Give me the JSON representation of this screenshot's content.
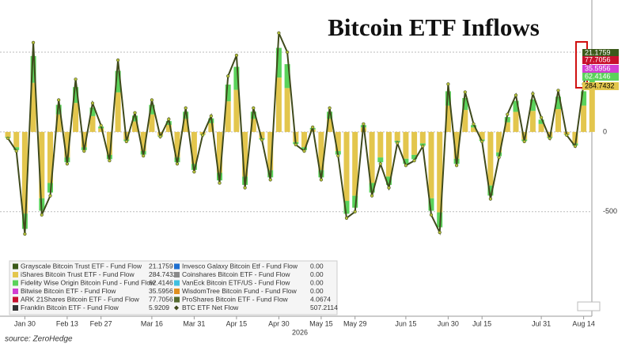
{
  "chart_data": {
    "type": "stacked_bar_line",
    "title": "Bitcoin ETF Inflows",
    "x_sub_label": "2026",
    "source": "source: ZeroHedge",
    "categories": [
      null,
      null,
      "Jan 30",
      null,
      null,
      null,
      null,
      "Feb 13",
      null,
      null,
      null,
      "Feb 27",
      null,
      null,
      null,
      null,
      null,
      "Mar 16",
      null,
      null,
      null,
      null,
      "Mar 31",
      null,
      null,
      null,
      null,
      "Apr 15",
      null,
      null,
      null,
      null,
      "Apr 30",
      null,
      null,
      null,
      null,
      "May 15",
      null,
      null,
      null,
      "May 29",
      null,
      null,
      null,
      null,
      null,
      "Jun 15",
      null,
      null,
      null,
      null,
      "Jun 30",
      null,
      null,
      null,
      "Jul 15",
      null,
      null,
      null,
      null,
      null,
      null,
      "Jul 31",
      null,
      null,
      null,
      null,
      "Aug 14",
      null
    ],
    "ylim": [
      -1180,
      827
    ],
    "yticks": [
      -500,
      0,
      500
    ],
    "grid": true,
    "series": [
      {
        "name": "Grayscale Bitcoin Trust ETF - Fund Flow",
        "color": "#3b5a1a",
        "last_value": 21.1759
      },
      {
        "name": "iShares Bitcoin Trust ETF - Fund Flow",
        "color": "#e3c64d",
        "last_value": 284.7432,
        "values": [
          -32,
          -96,
          -512,
          308,
          -416,
          -320,
          110,
          -160,
          182,
          -96,
          99,
          22,
          -144,
          248,
          -48,
          66,
          -120,
          110,
          -24,
          44,
          -160,
          82,
          -200,
          -16,
          55,
          -256,
          192,
          264,
          -280,
          82,
          -40,
          -240,
          341,
          275,
          -64,
          -96,
          16,
          -240,
          82,
          -120,
          -432,
          -400,
          28,
          -320,
          -160,
          -280,
          -56,
          -168,
          -144,
          -72,
          -416,
          -504,
          165,
          -168,
          138,
          28,
          -48,
          -336,
          -128,
          60,
          126,
          -48,
          132,
          50,
          -32,
          143,
          -16,
          -72,
          165,
          284.7432
        ]
      },
      {
        "name": "Fidelity Wise Origin Bitcoin Fund - Fund Flow",
        "color": "#5ad25a",
        "last_value": 62.4146,
        "values": [
          -6,
          -18,
          -96,
          168,
          -78,
          -60,
          60,
          -30,
          99,
          -18,
          54,
          12,
          -27,
          135,
          -9,
          36,
          -22,
          60,
          -4,
          24,
          -30,
          45,
          -38,
          -3,
          30,
          -48,
          105,
          144,
          -52,
          45,
          -8,
          -45,
          186,
          150,
          -12,
          -18,
          9,
          -45,
          45,
          -22,
          -81,
          -75,
          15,
          -60,
          -30,
          -52,
          -10,
          -32,
          -27,
          -14,
          -78,
          -94,
          90,
          -32,
          75,
          15,
          -9,
          -63,
          -24,
          33,
          69,
          -9,
          72,
          27,
          -6,
          78,
          -3,
          -14,
          90,
          62.4146
        ]
      },
      {
        "name": "Bitwise Bitcoin ETF - Fund Flow",
        "color": "#d23fd2",
        "last_value": 35.5956
      },
      {
        "name": "ARK 21Shares Bitcoin ETF - Fund Flow",
        "color": "#c8102e",
        "last_value": 77.7056
      },
      {
        "name": "Franklin Bitcoin ETF - Fund Flow",
        "color": "#333333",
        "last_value": 5.9209
      },
      {
        "name": "Invesco Galaxy Bitcoin Etf - Fund Flow",
        "color": "#1f6fd0",
        "last_value": 0,
        "last_value_label": "0.00"
      },
      {
        "name": "Coinshares Bitcoin ETF - Fund Flow",
        "color": "#8a8a8a",
        "last_value": 0,
        "last_value_label": "0.00"
      },
      {
        "name": "VanEck Bitcoin ETF/US - Fund Flow",
        "color": "#40c0e0",
        "last_value": 0,
        "last_value_label": "0.00"
      },
      {
        "name": "WisdomTree Bitcoin Fund - Fund Flow",
        "color": "#e09020",
        "last_value": 0,
        "last_value_label": "0.00"
      },
      {
        "name": "ProShares Bitcoin ETF - Fund Flow",
        "color": "#556b2f",
        "last_value": 4.0674
      },
      {
        "name": "BTC ETF Net Flow",
        "color": "#3f4a1c",
        "last_value": 507.2114,
        "kind": "line",
        "values": [
          -40,
          -120,
          -640,
          560,
          -520,
          -400,
          200,
          -200,
          330,
          -120,
          180,
          40,
          -180,
          450,
          -60,
          120,
          -150,
          200,
          -30,
          80,
          -200,
          150,
          -250,
          -20,
          100,
          -320,
          350,
          480,
          -350,
          150,
          -50,
          -300,
          620,
          500,
          -80,
          -120,
          30,
          -300,
          150,
          -150,
          -540,
          -500,
          50,
          -400,
          -200,
          -350,
          -70,
          -210,
          -180,
          -90,
          -520,
          -630,
          300,
          -210,
          250,
          50,
          -60,
          -420,
          -160,
          110,
          230,
          -60,
          240,
          90,
          -40,
          260,
          -20,
          -90,
          300,
          507.2114
        ]
      }
    ]
  }
}
